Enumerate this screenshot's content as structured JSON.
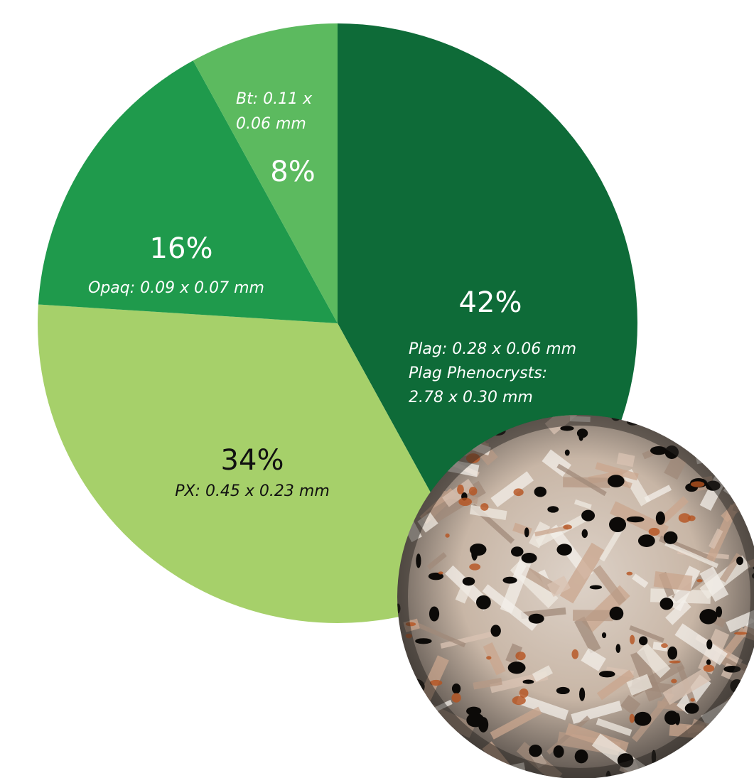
{
  "chart_data": {
    "type": "pie",
    "categories": [
      "Plag",
      "PX",
      "Opaq",
      "Bt"
    ],
    "values": [
      42,
      34,
      16,
      8
    ],
    "value_labels": [
      "42%",
      "34%",
      "16%",
      "8%"
    ],
    "labels": [
      [
        "Plag: 0.28 x 0.06 mm",
        "Plag Phenocrysts:",
        "2.78 x 0.30 mm"
      ],
      [
        "PX: 0.45 x 0.23 mm"
      ],
      [
        "Opaq: 0.09 x 0.07 mm"
      ],
      [
        "Bt: 0.11 x",
        "0.06 mm"
      ]
    ],
    "colors": [
      "#0e6b38",
      "#a6d06a",
      "#1f9a4c",
      "#5cba5f"
    ],
    "label_colors": [
      "#ffffff",
      "#111111",
      "#ffffff",
      "#ffffff"
    ]
  }
}
